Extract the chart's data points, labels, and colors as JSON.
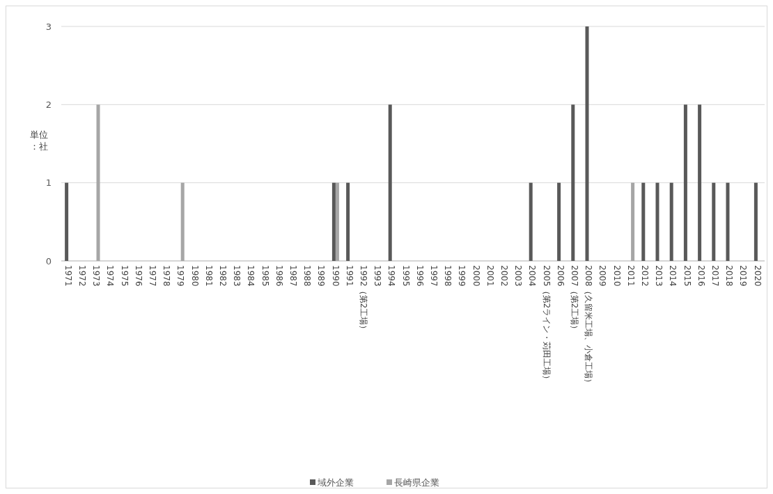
{
  "chart_data": {
    "type": "bar",
    "ylabel": "単位：社",
    "categories": [
      "1971",
      "1972",
      "1973",
      "1974",
      "1975",
      "1976",
      "1977",
      "1978",
      "1979",
      "1980",
      "1981",
      "1982",
      "1983",
      "1984",
      "1985",
      "1986",
      "1987",
      "1988",
      "1989",
      "1990",
      "1991",
      "1992（第2工場）",
      "1993",
      "1994",
      "1995",
      "1996",
      "1997",
      "1998",
      "1999",
      "2000",
      "2001",
      "2002",
      "2003",
      "2004",
      "2005（第2ライン・苅田工場）",
      "2006",
      "2007（第2工場）",
      "2008（久留米工場、小倉工場）",
      "2009",
      "2010",
      "2011",
      "2012",
      "2013",
      "2014",
      "2015",
      "2016",
      "2017",
      "2018",
      "2019",
      "2020"
    ],
    "series": [
      {
        "name": "域外企業",
        "color": "#595959",
        "values": [
          1,
          0,
          0,
          0,
          0,
          0,
          0,
          0,
          0,
          0,
          0,
          0,
          0,
          0,
          0,
          0,
          0,
          0,
          0,
          1,
          1,
          0,
          0,
          2,
          0,
          0,
          0,
          0,
          0,
          0,
          0,
          0,
          0,
          1,
          0,
          1,
          2,
          3,
          0,
          0,
          0,
          1,
          1,
          1,
          2,
          2,
          1,
          1,
          0,
          1
        ]
      },
      {
        "name": "長崎県企業",
        "color": "#a6a6a6",
        "values": [
          0,
          0,
          2,
          0,
          0,
          0,
          0,
          0,
          1,
          0,
          0,
          0,
          0,
          0,
          0,
          0,
          0,
          0,
          0,
          1,
          0,
          0,
          0,
          0,
          0,
          0,
          0,
          0,
          0,
          0,
          0,
          0,
          0,
          0,
          0,
          0,
          0,
          0,
          0,
          0,
          1,
          0,
          0,
          0,
          0,
          0,
          0,
          0,
          0,
          0
        ]
      }
    ],
    "ylim": [
      0,
      3
    ],
    "yticks": [
      0,
      1,
      2,
      3
    ],
    "grid": "y",
    "legend": "bottom"
  }
}
